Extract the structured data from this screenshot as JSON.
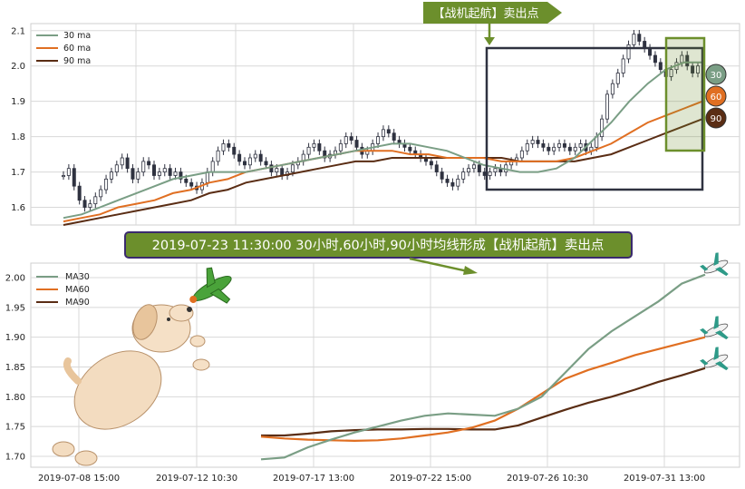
{
  "top_banner": "【战机起航】卖出点",
  "middle_banner": "2019-07-23 11:30:00 30小时,60小时,90小时均线形成【战机起航】卖出点",
  "colors": {
    "ma30": "#7a9e85",
    "ma60": "#e06f22",
    "ma90": "#5a2d14",
    "banner_green": "#6c8f2c",
    "highlight": "#6c8f2c",
    "box": "#2f3240",
    "candle": "#2f3240"
  },
  "chart_data": [
    {
      "type": "line",
      "subtype": "candlestick_with_moving_averages",
      "legend": [
        "30 ma",
        "60 ma",
        "90 ma"
      ],
      "legend_position": "top-left",
      "ylim": [
        1.55,
        2.12
      ],
      "yticks": [
        "1.6",
        "1.7",
        "1.8",
        "1.9",
        "2.0",
        "2.1"
      ],
      "grid": true,
      "end_markers": [
        "30",
        "60",
        "90"
      ],
      "candles_close": [
        1.69,
        1.71,
        1.66,
        1.62,
        1.6,
        1.61,
        1.63,
        1.65,
        1.68,
        1.7,
        1.72,
        1.74,
        1.71,
        1.68,
        1.7,
        1.73,
        1.72,
        1.69,
        1.7,
        1.71,
        1.69,
        1.7,
        1.68,
        1.67,
        1.66,
        1.65,
        1.67,
        1.7,
        1.73,
        1.76,
        1.78,
        1.77,
        1.75,
        1.73,
        1.72,
        1.74,
        1.75,
        1.73,
        1.72,
        1.7,
        1.71,
        1.69,
        1.7,
        1.72,
        1.73,
        1.75,
        1.77,
        1.78,
        1.76,
        1.74,
        1.75,
        1.76,
        1.78,
        1.8,
        1.79,
        1.77,
        1.75,
        1.76,
        1.78,
        1.8,
        1.82,
        1.81,
        1.79,
        1.78,
        1.77,
        1.76,
        1.75,
        1.74,
        1.73,
        1.72,
        1.7,
        1.68,
        1.67,
        1.66,
        1.68,
        1.7,
        1.71,
        1.72,
        1.7,
        1.69,
        1.7,
        1.71,
        1.7,
        1.72,
        1.73,
        1.74,
        1.76,
        1.78,
        1.79,
        1.78,
        1.77,
        1.76,
        1.77,
        1.78,
        1.77,
        1.76,
        1.77,
        1.78,
        1.76,
        1.77,
        1.8,
        1.85,
        1.92,
        1.95,
        1.98,
        2.02,
        2.06,
        2.09,
        2.07,
        2.05,
        2.03,
        2.01,
        1.99,
        1.97,
        1.99,
        2.01,
        2.03,
        2.0,
        1.98,
        2.0
      ],
      "ma30": [
        1.57,
        1.58,
        1.6,
        1.62,
        1.64,
        1.66,
        1.68,
        1.69,
        1.7,
        1.7,
        1.7,
        1.71,
        1.72,
        1.73,
        1.74,
        1.75,
        1.76,
        1.77,
        1.78,
        1.78,
        1.77,
        1.76,
        1.74,
        1.72,
        1.71,
        1.7,
        1.7,
        1.71,
        1.74,
        1.79,
        1.84,
        1.9,
        1.95,
        1.99,
        2.01,
        2.01
      ],
      "ma60": [
        1.56,
        1.57,
        1.58,
        1.6,
        1.61,
        1.62,
        1.64,
        1.65,
        1.67,
        1.68,
        1.7,
        1.71,
        1.72,
        1.73,
        1.74,
        1.75,
        1.76,
        1.76,
        1.76,
        1.75,
        1.75,
        1.74,
        1.74,
        1.74,
        1.73,
        1.73,
        1.73,
        1.73,
        1.74,
        1.76,
        1.78,
        1.81,
        1.84,
        1.86,
        1.88,
        1.9
      ],
      "ma90": [
        1.55,
        1.56,
        1.57,
        1.58,
        1.59,
        1.6,
        1.61,
        1.62,
        1.64,
        1.65,
        1.67,
        1.68,
        1.69,
        1.7,
        1.71,
        1.72,
        1.73,
        1.73,
        1.74,
        1.74,
        1.74,
        1.74,
        1.74,
        1.74,
        1.74,
        1.73,
        1.73,
        1.73,
        1.73,
        1.74,
        1.75,
        1.77,
        1.79,
        1.81,
        1.83,
        1.85
      ]
    },
    {
      "type": "line",
      "series": [
        {
          "name": "MA30",
          "values": [
            1.695,
            1.698,
            1.715,
            1.728,
            1.74,
            1.75,
            1.76,
            1.768,
            1.772,
            1.77,
            1.768,
            1.78,
            1.8,
            1.84,
            1.88,
            1.91,
            1.935,
            1.96,
            1.99,
            2.005
          ]
        },
        {
          "name": "MA60",
          "values": [
            1.733,
            1.73,
            1.728,
            1.727,
            1.726,
            1.727,
            1.73,
            1.735,
            1.74,
            1.748,
            1.76,
            1.78,
            1.805,
            1.83,
            1.845,
            1.857,
            1.87,
            1.88,
            1.89,
            1.9
          ]
        },
        {
          "name": "MA90",
          "values": [
            1.735,
            1.735,
            1.738,
            1.742,
            1.744,
            1.745,
            1.745,
            1.746,
            1.746,
            1.745,
            1.745,
            1.752,
            1.765,
            1.778,
            1.79,
            1.8,
            1.812,
            1.825,
            1.836,
            1.848
          ]
        }
      ],
      "legend_position": "top-left",
      "ylim": [
        1.685,
        2.02
      ],
      "yticks": [
        "1.70",
        "1.75",
        "1.80",
        "1.85",
        "1.90",
        "1.95",
        "2.00"
      ],
      "xticks": [
        "2019-07-08 15:00",
        "2019-07-12 10:30",
        "2019-07-17 13:00",
        "2019-07-22 15:00",
        "2019-07-26 10:30",
        "2019-07-31 13:00"
      ],
      "grid": true
    }
  ]
}
